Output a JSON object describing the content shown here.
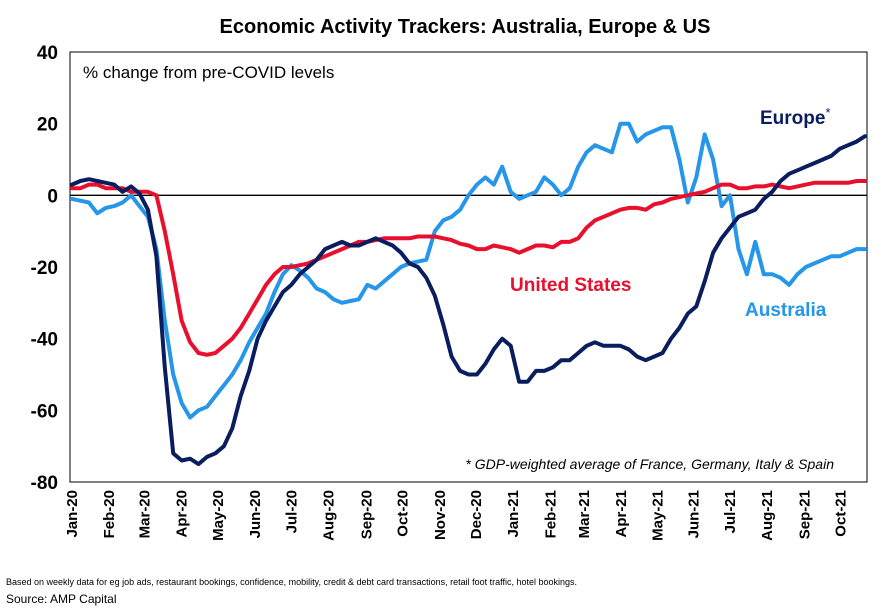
{
  "chart_data": {
    "type": "line",
    "title": "Economic Activity Trackers: Australia, Europe & US",
    "subtitle": "% change from pre-COVID levels",
    "annotation": "* GDP-weighted average of France, Germany, Italy & Spain",
    "ylim": [
      -80,
      40
    ],
    "yticks": [
      -80,
      -60,
      -40,
      -20,
      0,
      20,
      40
    ],
    "xlim": [
      0,
      94
    ],
    "xticks": [
      {
        "label": "Jan-20",
        "x": 0
      },
      {
        "label": "Feb-20",
        "x": 4.4
      },
      {
        "label": "Mar-20",
        "x": 8.6
      },
      {
        "label": "Apr-20",
        "x": 13
      },
      {
        "label": "May-20",
        "x": 17.3
      },
      {
        "label": "Jun-20",
        "x": 21.7
      },
      {
        "label": "Jul-20",
        "x": 26
      },
      {
        "label": "Aug-20",
        "x": 30.4
      },
      {
        "label": "Sep-20",
        "x": 34.9
      },
      {
        "label": "Oct-20",
        "x": 39.2
      },
      {
        "label": "Nov-20",
        "x": 43.6
      },
      {
        "label": "Dec-20",
        "x": 47.9
      },
      {
        "label": "Jan-21",
        "x": 52.3
      },
      {
        "label": "Feb-21",
        "x": 56.7
      },
      {
        "label": "Mar-21",
        "x": 60.7
      },
      {
        "label": "Apr-21",
        "x": 65.1
      },
      {
        "label": "May-21",
        "x": 69.4
      },
      {
        "label": "Jun-21",
        "x": 73.7
      },
      {
        "label": "Jul-21",
        "x": 78
      },
      {
        "label": "Aug-21",
        "x": 82.4
      },
      {
        "label": "Sep-21",
        "x": 86.8
      },
      {
        "label": "Oct-21",
        "x": 91.1
      }
    ],
    "zero_line": true,
    "grid": false,
    "series": [
      {
        "name": "Europe*",
        "color": "#0a1d5e",
        "points": [
          [
            0,
            3
          ],
          [
            1,
            4
          ],
          [
            2,
            4.5
          ],
          [
            3,
            4
          ],
          [
            4,
            3.5
          ],
          [
            5,
            3
          ],
          [
            6,
            1
          ],
          [
            7,
            2.5
          ],
          [
            8,
            0.5
          ],
          [
            9,
            -4
          ],
          [
            10,
            -17
          ],
          [
            11,
            -48
          ],
          [
            12,
            -72
          ],
          [
            13,
            -74
          ],
          [
            14,
            -73.5
          ],
          [
            15,
            -75
          ],
          [
            16,
            -73
          ],
          [
            17,
            -72
          ],
          [
            18,
            -70
          ],
          [
            19,
            -65
          ],
          [
            20,
            -56
          ],
          [
            21,
            -49
          ],
          [
            22,
            -40
          ],
          [
            23,
            -35
          ],
          [
            24,
            -31
          ],
          [
            25,
            -27
          ],
          [
            26,
            -25
          ],
          [
            27,
            -22
          ],
          [
            28,
            -20
          ],
          [
            29,
            -18
          ],
          [
            30,
            -15
          ],
          [
            31,
            -14
          ],
          [
            32,
            -13
          ],
          [
            33,
            -14
          ],
          [
            34,
            -14
          ],
          [
            35,
            -13
          ],
          [
            36,
            -12
          ],
          [
            37,
            -13
          ],
          [
            38,
            -14
          ],
          [
            39,
            -16
          ],
          [
            40,
            -19
          ],
          [
            41,
            -20
          ],
          [
            42,
            -23
          ],
          [
            43,
            -28
          ],
          [
            44,
            -36
          ],
          [
            45,
            -45
          ],
          [
            46,
            -49
          ],
          [
            47,
            -50
          ],
          [
            48,
            -50
          ],
          [
            49,
            -47
          ],
          [
            50,
            -43
          ],
          [
            51,
            -40
          ],
          [
            52,
            -42
          ],
          [
            53,
            -52
          ],
          [
            54,
            -52
          ],
          [
            55,
            -49
          ],
          [
            56,
            -49
          ],
          [
            57,
            -48
          ],
          [
            58,
            -46
          ],
          [
            59,
            -46
          ],
          [
            60,
            -44
          ],
          [
            61,
            -42
          ],
          [
            62,
            -41
          ],
          [
            63,
            -42
          ],
          [
            64,
            -42
          ],
          [
            65,
            -42
          ],
          [
            66,
            -43
          ],
          [
            67,
            -45
          ],
          [
            68,
            -46
          ],
          [
            69,
            -45
          ],
          [
            70,
            -44
          ],
          [
            71,
            -40
          ],
          [
            72,
            -37
          ],
          [
            73,
            -33
          ],
          [
            74,
            -31
          ],
          [
            75,
            -24
          ],
          [
            76,
            -16
          ],
          [
            77,
            -12
          ],
          [
            78,
            -9
          ],
          [
            79,
            -6
          ],
          [
            80,
            -5
          ],
          [
            81,
            -4
          ],
          [
            82,
            -1
          ],
          [
            83,
            1
          ],
          [
            84,
            4
          ],
          [
            85,
            6
          ],
          [
            86,
            7
          ],
          [
            87,
            8
          ],
          [
            88,
            9
          ],
          [
            89,
            10
          ],
          [
            90,
            11
          ],
          [
            91,
            13
          ],
          [
            92,
            14
          ],
          [
            93,
            15
          ],
          [
            94,
            16.5
          ]
        ]
      },
      {
        "name": "United States",
        "color": "#e8102c",
        "points": [
          [
            0,
            2
          ],
          [
            1,
            2
          ],
          [
            2,
            3
          ],
          [
            3,
            3
          ],
          [
            4,
            2
          ],
          [
            5,
            2
          ],
          [
            6,
            2
          ],
          [
            7,
            1
          ],
          [
            8,
            1
          ],
          [
            9,
            1
          ],
          [
            10,
            0
          ],
          [
            11,
            -10
          ],
          [
            12,
            -22
          ],
          [
            13,
            -35
          ],
          [
            14,
            -41
          ],
          [
            15,
            -44
          ],
          [
            16,
            -44.5
          ],
          [
            17,
            -44
          ],
          [
            18,
            -42
          ],
          [
            19,
            -40
          ],
          [
            20,
            -37
          ],
          [
            21,
            -33
          ],
          [
            22,
            -29
          ],
          [
            23,
            -25
          ],
          [
            24,
            -22
          ],
          [
            25,
            -20
          ],
          [
            26,
            -20
          ],
          [
            27,
            -19.5
          ],
          [
            28,
            -19
          ],
          [
            29,
            -18
          ],
          [
            30,
            -17
          ],
          [
            31,
            -16
          ],
          [
            32,
            -15
          ],
          [
            33,
            -14
          ],
          [
            34,
            -13
          ],
          [
            35,
            -13
          ],
          [
            36,
            -12.5
          ],
          [
            37,
            -12
          ],
          [
            38,
            -12
          ],
          [
            39,
            -12
          ],
          [
            40,
            -12
          ],
          [
            41,
            -11.5
          ],
          [
            42,
            -11.5
          ],
          [
            43,
            -11.5
          ],
          [
            44,
            -12
          ],
          [
            45,
            -12.5
          ],
          [
            46,
            -13.5
          ],
          [
            47,
            -14
          ],
          [
            48,
            -15
          ],
          [
            49,
            -15
          ],
          [
            50,
            -14
          ],
          [
            51,
            -14.5
          ],
          [
            52,
            -15
          ],
          [
            53,
            -16
          ],
          [
            54,
            -15
          ],
          [
            55,
            -14
          ],
          [
            56,
            -14
          ],
          [
            57,
            -14.5
          ],
          [
            58,
            -13
          ],
          [
            59,
            -13
          ],
          [
            60,
            -12
          ],
          [
            61,
            -9
          ],
          [
            62,
            -7
          ],
          [
            63,
            -6
          ],
          [
            64,
            -5
          ],
          [
            65,
            -4
          ],
          [
            66,
            -3.5
          ],
          [
            67,
            -3.5
          ],
          [
            68,
            -4
          ],
          [
            69,
            -2.5
          ],
          [
            70,
            -2
          ],
          [
            71,
            -1
          ],
          [
            72,
            -0.5
          ],
          [
            73,
            0
          ],
          [
            74,
            0.5
          ],
          [
            75,
            1
          ],
          [
            76,
            2
          ],
          [
            77,
            3
          ],
          [
            78,
            3
          ],
          [
            79,
            2
          ],
          [
            80,
            2
          ],
          [
            81,
            2.5
          ],
          [
            82,
            2.5
          ],
          [
            83,
            3
          ],
          [
            84,
            2.5
          ],
          [
            85,
            2
          ],
          [
            86,
            2.5
          ],
          [
            87,
            3
          ],
          [
            88,
            3.5
          ],
          [
            89,
            3.5
          ],
          [
            90,
            3.5
          ],
          [
            91,
            3.5
          ],
          [
            92,
            3.5
          ],
          [
            93,
            4
          ],
          [
            94,
            4
          ]
        ]
      },
      {
        "name": "Australia",
        "color": "#2596e8",
        "points": [
          [
            0,
            -1
          ],
          [
            1,
            -1.5
          ],
          [
            2,
            -2
          ],
          [
            3,
            -5
          ],
          [
            4,
            -3.5
          ],
          [
            5,
            -3
          ],
          [
            6,
            -2
          ],
          [
            7,
            0
          ],
          [
            8,
            -3
          ],
          [
            9,
            -6
          ],
          [
            10,
            -15
          ],
          [
            11,
            -35
          ],
          [
            12,
            -50
          ],
          [
            13,
            -58
          ],
          [
            14,
            -62
          ],
          [
            15,
            -60
          ],
          [
            16,
            -59
          ],
          [
            17,
            -56
          ],
          [
            18,
            -53
          ],
          [
            19,
            -50
          ],
          [
            20,
            -46
          ],
          [
            21,
            -41
          ],
          [
            22,
            -37
          ],
          [
            23,
            -33
          ],
          [
            24,
            -27
          ],
          [
            25,
            -22
          ],
          [
            26,
            -19.5
          ],
          [
            27,
            -21
          ],
          [
            28,
            -23
          ],
          [
            29,
            -26
          ],
          [
            30,
            -27
          ],
          [
            31,
            -29
          ],
          [
            32,
            -30
          ],
          [
            33,
            -29.5
          ],
          [
            34,
            -29
          ],
          [
            35,
            -25
          ],
          [
            36,
            -26
          ],
          [
            37,
            -24
          ],
          [
            38,
            -22
          ],
          [
            39,
            -20
          ],
          [
            40,
            -19
          ],
          [
            41,
            -18.5
          ],
          [
            42,
            -18
          ],
          [
            43,
            -10
          ],
          [
            44,
            -7
          ],
          [
            45,
            -6
          ],
          [
            46,
            -4
          ],
          [
            47,
            0
          ],
          [
            48,
            3
          ],
          [
            49,
            5
          ],
          [
            50,
            3
          ],
          [
            51,
            8
          ],
          [
            52,
            1
          ],
          [
            53,
            -1
          ],
          [
            54,
            0
          ],
          [
            55,
            1
          ],
          [
            56,
            5
          ],
          [
            57,
            3
          ],
          [
            58,
            0
          ],
          [
            59,
            2
          ],
          [
            60,
            8
          ],
          [
            61,
            12
          ],
          [
            62,
            14
          ],
          [
            63,
            13
          ],
          [
            64,
            12
          ],
          [
            65,
            20
          ],
          [
            66,
            20
          ],
          [
            67,
            15
          ],
          [
            68,
            17
          ],
          [
            69,
            18
          ],
          [
            70,
            19
          ],
          [
            71,
            19
          ],
          [
            72,
            10
          ],
          [
            73,
            -2
          ],
          [
            74,
            5
          ],
          [
            75,
            17
          ],
          [
            76,
            10
          ],
          [
            77,
            -3
          ],
          [
            78,
            0
          ],
          [
            79,
            -15
          ],
          [
            80,
            -22
          ],
          [
            81,
            -13
          ],
          [
            82,
            -22
          ],
          [
            83,
            -22
          ],
          [
            84,
            -23
          ],
          [
            85,
            -25
          ],
          [
            86,
            -22
          ],
          [
            87,
            -20
          ],
          [
            88,
            -19
          ],
          [
            89,
            -18
          ],
          [
            90,
            -17
          ],
          [
            91,
            -17
          ],
          [
            92,
            -16
          ],
          [
            93,
            -15
          ],
          [
            94,
            -15
          ]
        ]
      }
    ],
    "legend": {
      "europe": "Europe",
      "europe_mark": "*",
      "us": "United States",
      "australia": "Australia"
    }
  },
  "footnote": "Based on weekly data for eg job ads, restaurant bookings, confidence, mobility, credit & debt card transactions, retail foot traffic, hotel bookings.",
  "source": "Source: AMP Capital"
}
